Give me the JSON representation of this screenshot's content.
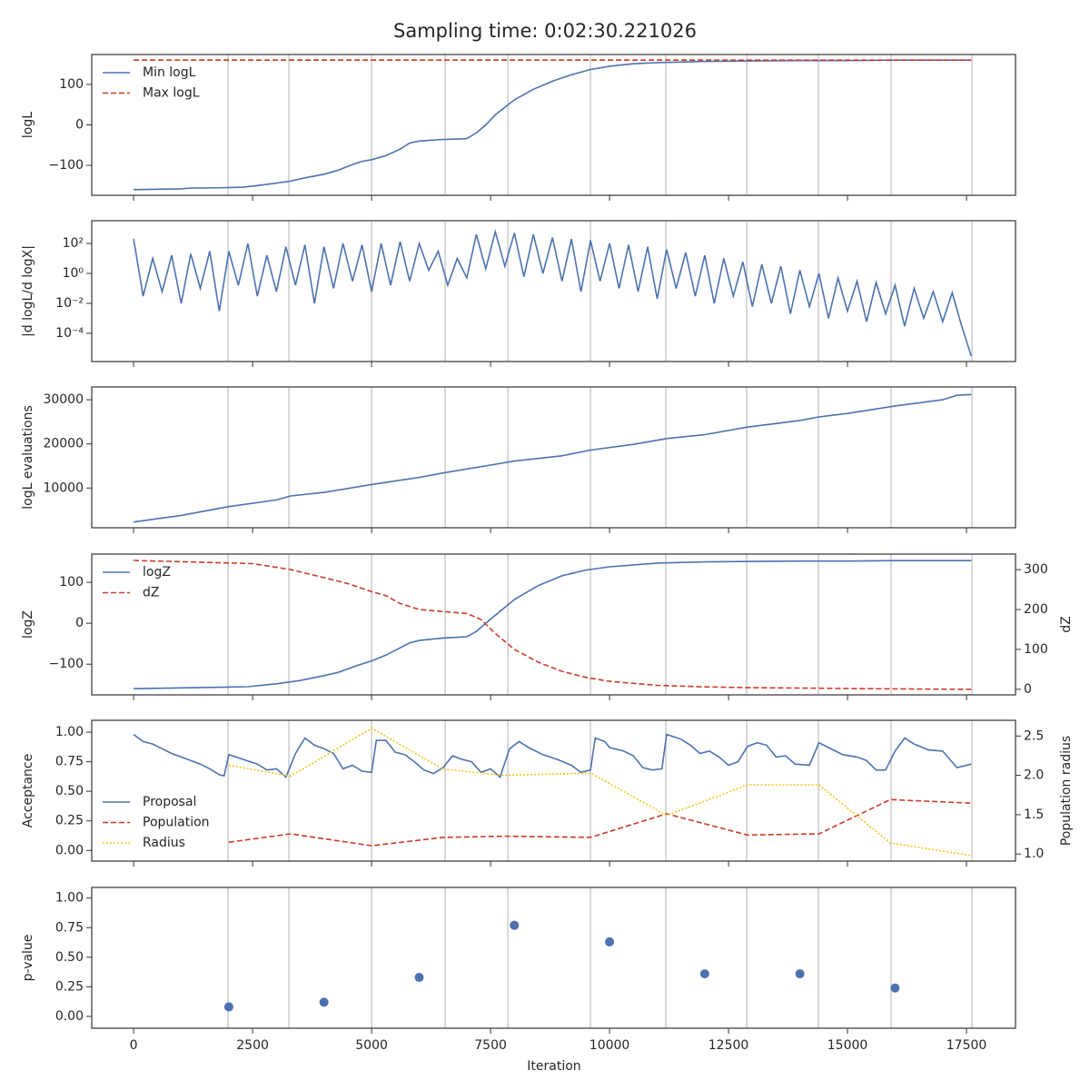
{
  "chart_data": {
    "title": "Sampling time: 0:02:30.221026",
    "xlabel": "Iteration",
    "xlim": [
      -880,
      18530
    ],
    "xticks": [
      0,
      2500,
      5000,
      7500,
      10000,
      12500,
      15000,
      17500
    ],
    "vlines": [
      1985,
      3263,
      5000,
      6546,
      7863,
      9599,
      11183,
      12882,
      14389,
      15916,
      17615
    ],
    "panels": [
      {
        "type": "line",
        "ylabel": "logL",
        "ylim": [
          -174,
          174
        ],
        "yticks": [
          {
            "value": -100,
            "label": "−100"
          },
          0,
          100
        ],
        "legend": "upper left",
        "series": [
          {
            "name": "Min logL",
            "color": "#4c72b0",
            "dash": "solid",
            "x": [
              0,
              500,
              1000,
              1200,
              1500,
              2000,
              2300,
              2600,
              3000,
              3300,
              3600,
              4000,
              4300,
              4600,
              4800,
              5000,
              5300,
              5600,
              5800,
              6000,
              6500,
              6800,
              7000,
              7200,
              7400,
              7600,
              8000,
              8400,
              8800,
              9200,
              9600,
              10000,
              10500,
              11000,
              12000,
              13000,
              14000,
              15000,
              16000,
              17600
            ],
            "values": [
              -160,
              -159,
              -158,
              -156,
              -156,
              -155,
              -154,
              -150,
              -144,
              -139,
              -131,
              -122,
              -112,
              -98,
              -90,
              -86,
              -76,
              -60,
              -45,
              -40,
              -36,
              -35,
              -34,
              -20,
              0,
              25,
              62,
              88,
              108,
              124,
              137,
              145,
              151,
              154,
              157,
              158,
              159,
              159,
              160,
              160
            ]
          },
          {
            "name": "Max logL",
            "color": "#cc3a2c",
            "dash": "dashed",
            "x": [
              0,
              17600
            ],
            "values": [
              160,
              160
            ]
          }
        ]
      },
      {
        "type": "line",
        "ylabel": "|d logL/d logX|",
        "yscale": "log",
        "ylim": [
          1.3e-06,
          3300
        ],
        "yticks": [
          {
            "value": 0.0001,
            "label": "10⁻⁴"
          },
          {
            "value": 0.01,
            "label": "10⁻²"
          },
          {
            "value": 1,
            "label": "10⁰"
          },
          {
            "value": 100,
            "label": "10²"
          }
        ],
        "series": [
          {
            "name": "|d logL/d logX|",
            "color": "#4c72b0",
            "dash": "solid",
            "x": [
              0,
              200,
              400,
              600,
              800,
              1000,
              1200,
              1400,
              1600,
              1800,
              2000,
              2200,
              2400,
              2600,
              2800,
              3000,
              3200,
              3400,
              3600,
              3800,
              4000,
              4200,
              4400,
              4600,
              4800,
              5000,
              5200,
              5400,
              5600,
              5800,
              6000,
              6200,
              6400,
              6600,
              6800,
              7000,
              7200,
              7400,
              7600,
              7800,
              8000,
              8200,
              8400,
              8600,
              8800,
              9000,
              9200,
              9400,
              9600,
              9800,
              10000,
              10200,
              10400,
              10600,
              10800,
              11000,
              11200,
              11400,
              11600,
              11800,
              12000,
              12200,
              12400,
              12600,
              12800,
              13000,
              13200,
              13400,
              13600,
              13800,
              14000,
              14200,
              14400,
              14600,
              14800,
              15000,
              15200,
              15400,
              15600,
              15800,
              16000,
              16200,
              16400,
              16600,
              16800,
              17000,
              17200,
              17400,
              17600
            ],
            "values": [
              200,
              0.03,
              10,
              0.06,
              16,
              0.01,
              20,
              0.1,
              30,
              0.003,
              30,
              0.16,
              100,
              0.03,
              16,
              0.06,
              60,
              0.16,
              80,
              0.01,
              60,
              0.1,
              100,
              0.3,
              80,
              0.06,
              100,
              0.16,
              130,
              0.3,
              100,
              1.6,
              30,
              0.16,
              10,
              0.5,
              400,
              2,
              600,
              3,
              500,
              0.6,
              400,
              1,
              250,
              0.3,
              200,
              0.06,
              160,
              0.3,
              100,
              0.1,
              80,
              0.06,
              60,
              0.02,
              40,
              0.1,
              25,
              0.03,
              16,
              0.01,
              10,
              0.03,
              6,
              0.006,
              4,
              0.01,
              3,
              0.002,
              1.6,
              0.006,
              1,
              0.001,
              0.5,
              0.003,
              0.3,
              0.0006,
              0.25,
              0.002,
              0.16,
              0.0003,
              0.1,
              0.001,
              0.06,
              0.0006,
              0.05,
              0.0003,
              3e-06
            ]
          }
        ]
      },
      {
        "type": "line",
        "ylabel": "logL evaluations",
        "ylim": [
          1000,
          32900
        ],
        "yticks": [
          10000,
          20000,
          30000
        ],
        "series": [
          {
            "name": "logL evaluations",
            "color": "#4c72b0",
            "dash": "solid",
            "x": [
              0,
              1000,
              2000,
              3000,
              3300,
              4000,
              5000,
              6000,
              6500,
              7500,
              8000,
              9000,
              9600,
              10500,
              11200,
              12000,
              12900,
              14000,
              14400,
              15000,
              16000,
              17000,
              17300,
              17600
            ],
            "values": [
              2300,
              3800,
              5800,
              7300,
              8200,
              9000,
              10800,
              12400,
              13400,
              15200,
              16100,
              17300,
              18600,
              19900,
              21200,
              22100,
              23800,
              25300,
              26100,
              26900,
              28600,
              30000,
              31000,
              31200
            ]
          }
        ]
      },
      {
        "type": "line",
        "ylabel": "logZ",
        "ylim": [
          -175,
          169
        ],
        "yticks": [
          {
            "value": -100,
            "label": "−100"
          },
          0,
          100
        ],
        "y2label": "dZ",
        "y2lim": [
          -14,
          339
        ],
        "y2ticks": [
          0,
          100,
          200,
          300
        ],
        "legend": "upper left",
        "series": [
          {
            "name": "logZ",
            "color": "#4c72b0",
            "dash": "solid",
            "x": [
              0,
              1000,
              2000,
              2400,
              3000,
              3500,
              4000,
              4300,
              4700,
              5000,
              5300,
              5600,
              5800,
              6000,
              6500,
              7000,
              7200,
              7500,
              8000,
              8500,
              9000,
              9500,
              10000,
              11000,
              12000,
              13000,
              14000,
              15000,
              16000,
              17600
            ],
            "values": [
              -160,
              -158,
              -156,
              -155,
              -148,
              -140,
              -128,
              -120,
              -103,
              -92,
              -78,
              -60,
              -48,
              -42,
              -36,
              -33,
              -20,
              10,
              58,
              92,
              116,
              130,
              138,
              147,
              150,
              151,
              152,
              152,
              153,
              153
            ]
          },
          {
            "name": "dZ",
            "color": "#cc3a2c",
            "dash": "dashed",
            "axis": "y2",
            "x": [
              0,
              2500,
              3300,
              4000,
              4500,
              5000,
              5300,
              5600,
              6000,
              6500,
              7000,
              7300,
              7600,
              8000,
              8500,
              9000,
              9500,
              10000,
              11000,
              12000,
              13000,
              14000,
              15000,
              16000,
              17600
            ],
            "values": [
              323,
              315,
              300,
              280,
              265,
              245,
              235,
              215,
              200,
              195,
              190,
              175,
              140,
              100,
              68,
              45,
              30,
              20,
              10,
              6,
              4,
              3,
              2,
              1,
              0
            ]
          }
        ]
      },
      {
        "type": "line",
        "ylabel": "Acceptance",
        "ylim": [
          -0.09,
          1.1
        ],
        "yticks": [
          {
            "value": 0,
            "label": "0.00"
          },
          {
            "value": 0.25,
            "label": "0.25"
          },
          {
            "value": 0.5,
            "label": "0.50"
          },
          {
            "value": 0.75,
            "label": "0.75"
          },
          {
            "value": 1,
            "label": "1.00"
          }
        ],
        "y2label": "Population radius",
        "y2lim": [
          0.91,
          2.7
        ],
        "y2ticks": [
          {
            "value": 1,
            "label": "1.0"
          },
          {
            "value": 1.5,
            "label": "1.5"
          },
          {
            "value": 2,
            "label": "2.0"
          },
          {
            "value": 2.5,
            "label": "2.5"
          }
        ],
        "legend": "lower left",
        "series": [
          {
            "name": "Proposal",
            "color": "#4c72b0",
            "dash": "solid",
            "x": [
              0,
              200,
              400,
              600,
              800,
              1000,
              1200,
              1400,
              1600,
              1800,
              1900,
              2000,
              2300,
              2600,
              2800,
              3000,
              3200,
              3400,
              3600,
              3800,
              4000,
              4200,
              4400,
              4600,
              4800,
              5000,
              5100,
              5300,
              5500,
              5700,
              5900,
              6100,
              6300,
              6500,
              6700,
              6900,
              7100,
              7300,
              7500,
              7700,
              7900,
              8100,
              8300,
              8600,
              8900,
              9200,
              9400,
              9600,
              9700,
              9900,
              10000,
              10300,
              10500,
              10700,
              10900,
              11100,
              11200,
              11500,
              11700,
              11900,
              12100,
              12300,
              12500,
              12700,
              12900,
              13100,
              13300,
              13500,
              13700,
              13900,
              14200,
              14400,
              14600,
              14900,
              15200,
              15400,
              15600,
              15800,
              16000,
              16200,
              16400,
              16700,
              17000,
              17300,
              17600
            ],
            "values": [
              0.98,
              0.92,
              0.9,
              0.86,
              0.82,
              0.79,
              0.76,
              0.73,
              0.69,
              0.64,
              0.63,
              0.81,
              0.77,
              0.73,
              0.68,
              0.69,
              0.62,
              0.82,
              0.95,
              0.89,
              0.86,
              0.82,
              0.69,
              0.72,
              0.67,
              0.66,
              0.93,
              0.93,
              0.83,
              0.81,
              0.75,
              0.68,
              0.65,
              0.7,
              0.8,
              0.77,
              0.75,
              0.66,
              0.69,
              0.62,
              0.86,
              0.92,
              0.87,
              0.81,
              0.77,
              0.72,
              0.66,
              0.68,
              0.95,
              0.92,
              0.87,
              0.84,
              0.8,
              0.7,
              0.68,
              0.69,
              0.98,
              0.94,
              0.89,
              0.82,
              0.84,
              0.79,
              0.72,
              0.75,
              0.88,
              0.91,
              0.89,
              0.79,
              0.8,
              0.73,
              0.72,
              0.91,
              0.87,
              0.81,
              0.79,
              0.76,
              0.68,
              0.68,
              0.84,
              0.95,
              0.9,
              0.85,
              0.84,
              0.7,
              0.73
            ]
          },
          {
            "name": "Population",
            "color": "#cc3a2c",
            "dash": "dashed",
            "x": [
              2000,
              3300,
              5000,
              6500,
              7800,
              9600,
              11200,
              12900,
              14400,
              15900,
              17600
            ],
            "values": [
              0.07,
              0.14,
              0.04,
              0.11,
              0.12,
              0.11,
              0.31,
              0.13,
              0.14,
              0.43,
              0.4
            ]
          },
          {
            "name": "Radius",
            "color": "#f5c518",
            "dash": "dotted",
            "axis": "y2",
            "x": [
              2000,
              3300,
              5000,
              6500,
              7800,
              9600,
              11200,
              12900,
              14400,
              15900,
              17600
            ],
            "values": [
              2.13,
              1.99,
              2.6,
              2.08,
              2.0,
              2.03,
              1.49,
              1.88,
              1.88,
              1.14,
              0.98
            ]
          }
        ]
      },
      {
        "type": "scatter",
        "ylabel": "p-value",
        "ylim": [
          -0.1,
          1.09
        ],
        "yticks": [
          {
            "value": 0,
            "label": "0.00"
          },
          {
            "value": 0.25,
            "label": "0.25"
          },
          {
            "value": 0.5,
            "label": "0.50"
          },
          {
            "value": 0.75,
            "label": "0.75"
          },
          {
            "value": 1,
            "label": "1.00"
          }
        ],
        "color": "#4c72b0",
        "x": [
          2000,
          4000,
          6000,
          8000,
          10000,
          12000,
          14000,
          16000
        ],
        "values": [
          0.08,
          0.12,
          0.33,
          0.77,
          0.63,
          0.36,
          0.36,
          0.24
        ]
      }
    ]
  }
}
